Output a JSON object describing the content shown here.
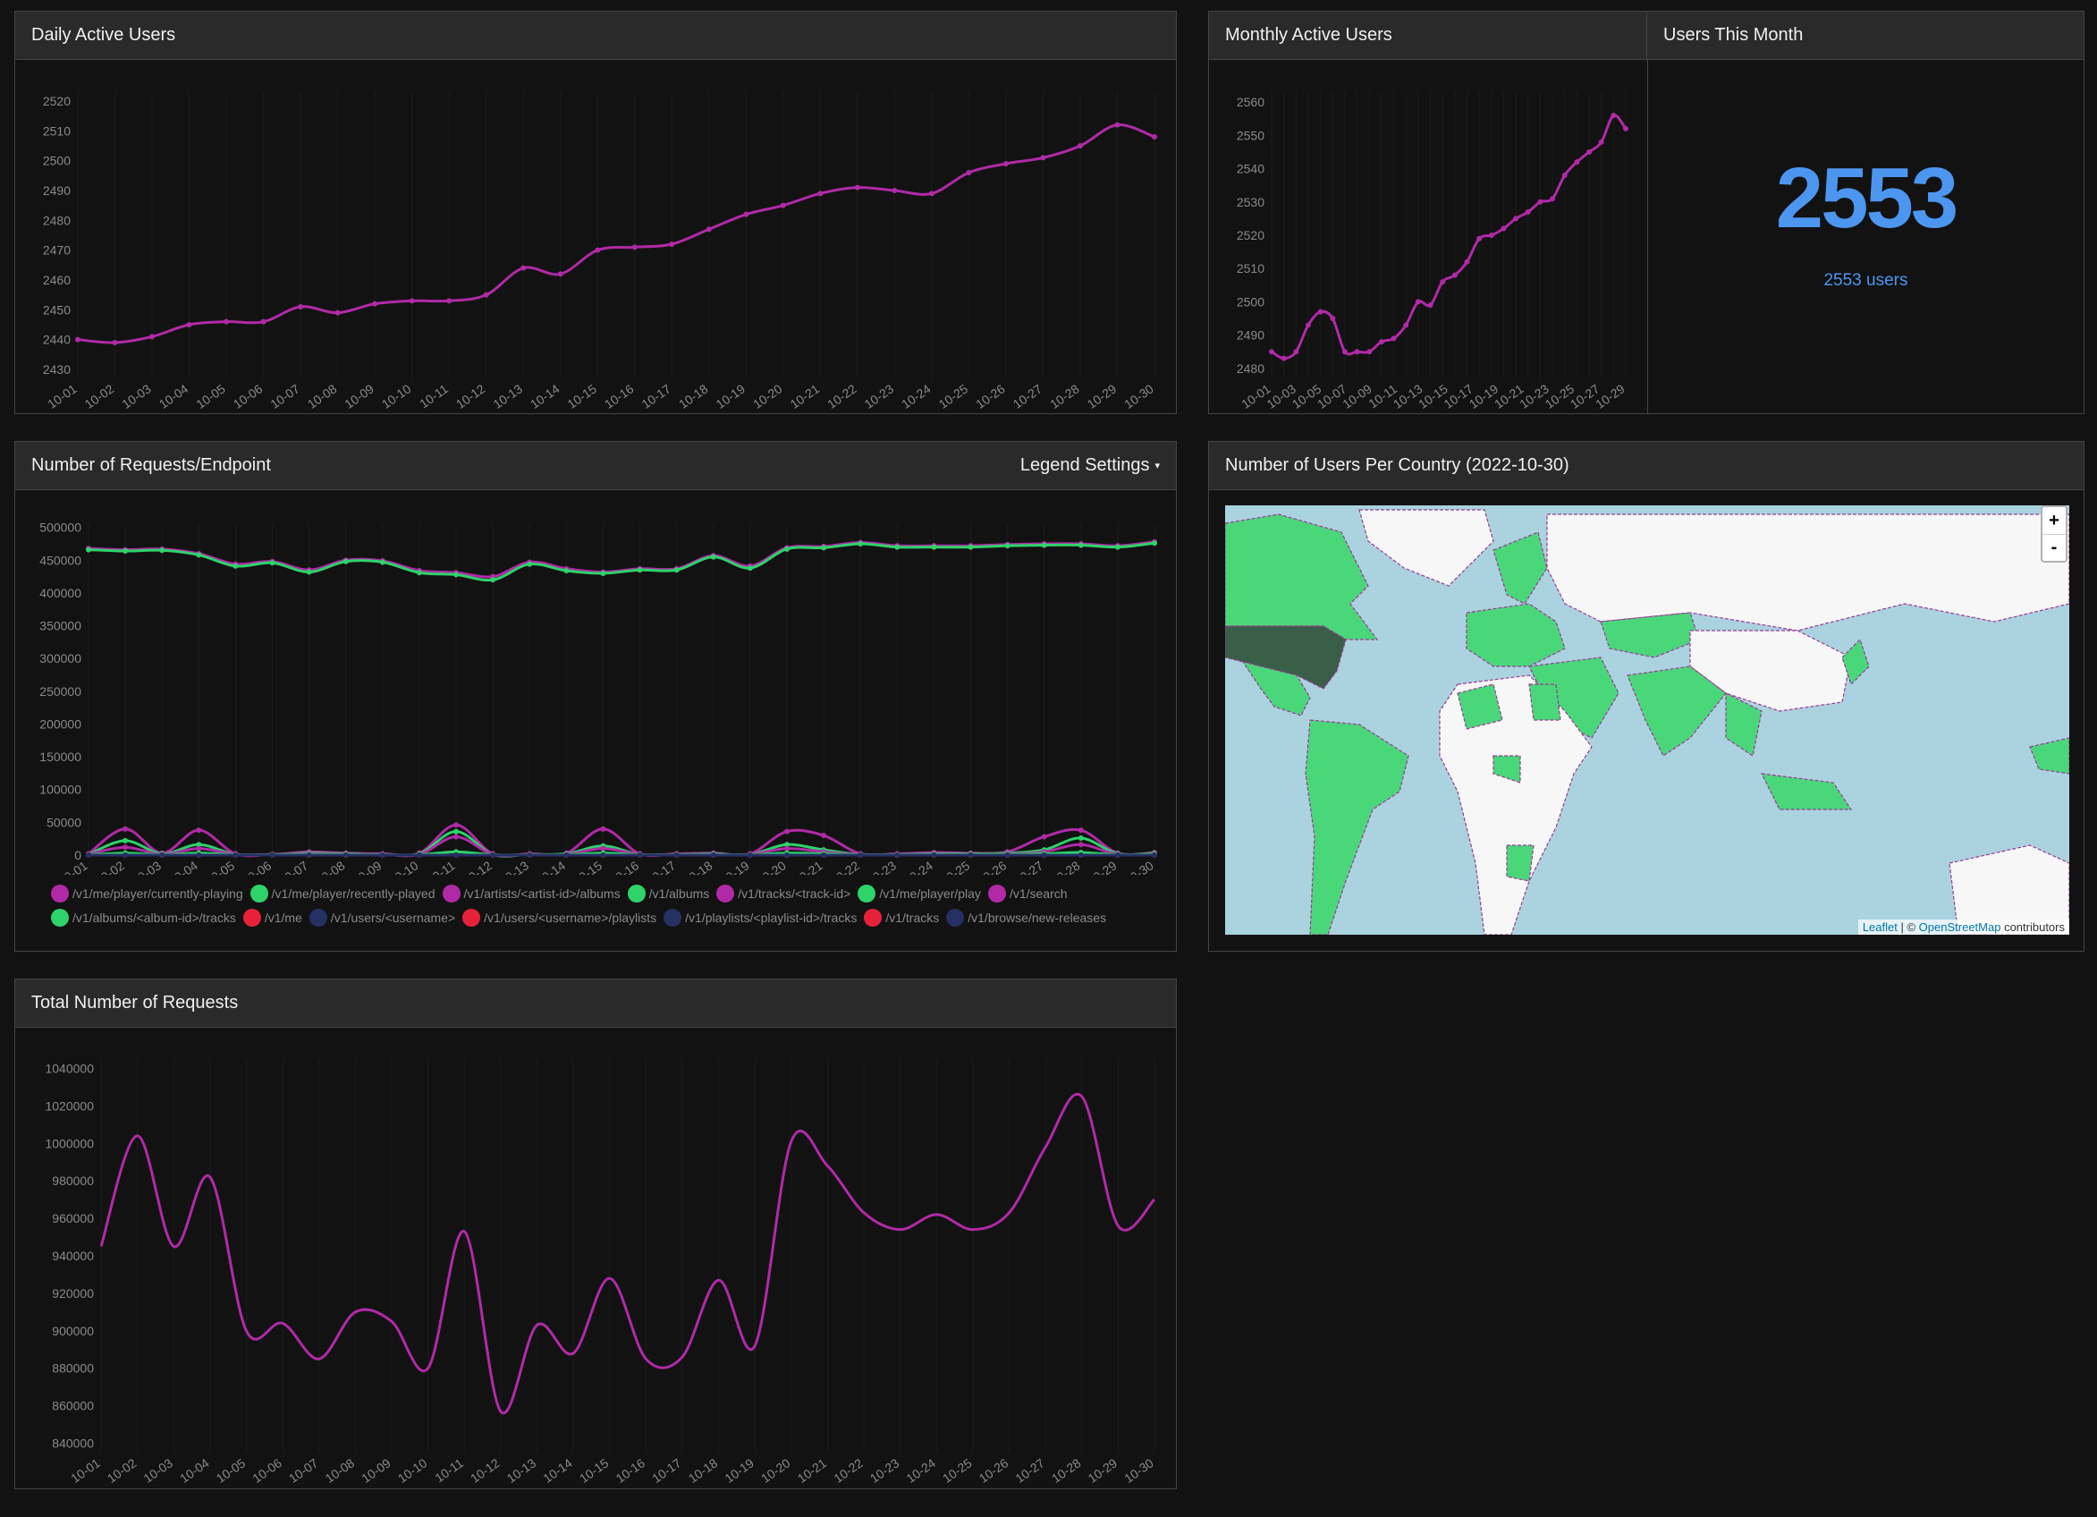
{
  "colors": {
    "accent": "#4d96f0",
    "purple": "#b02aa6",
    "green": "#2ed36a",
    "red": "#e8213a",
    "navy": "#253063"
  },
  "panels": {
    "dau": {
      "title": "Daily Active Users"
    },
    "mau": {
      "title": "Monthly Active Users"
    },
    "utm": {
      "title": "Users This Month",
      "value": "2553",
      "caption": "2553 users"
    },
    "req": {
      "title": "Number of Requests/Endpoint",
      "legend_button": "Legend Settings"
    },
    "map": {
      "title": "Number of Users Per Country (2022-10-30)",
      "zoom_in": "+",
      "zoom_out": "-",
      "attrib_leaflet": "Leaflet",
      "attrib_sep": " | © ",
      "attrib_osm": "OpenStreetMap",
      "attrib_tail": " contributors"
    },
    "total": {
      "title": "Total Number of Requests"
    }
  },
  "chart_data": [
    {
      "type": "line",
      "title": "Daily Active Users",
      "x": [
        "10-01",
        "10-02",
        "10-03",
        "10-04",
        "10-05",
        "10-06",
        "10-07",
        "10-08",
        "10-09",
        "10-10",
        "10-11",
        "10-12",
        "10-13",
        "10-14",
        "10-15",
        "10-16",
        "10-17",
        "10-18",
        "10-19",
        "10-20",
        "10-21",
        "10-22",
        "10-23",
        "10-24",
        "10-25",
        "10-26",
        "10-27",
        "10-28",
        "10-29",
        "10-30"
      ],
      "series": [
        {
          "values": [
            2440,
            2439,
            2441,
            2445,
            2446,
            2446,
            2451,
            2449,
            2452,
            2453,
            2453,
            2455,
            2464,
            2462,
            2470,
            2471,
            2472,
            2477,
            2482,
            2485,
            2489,
            2491,
            2490,
            2489,
            2496,
            2499,
            2501,
            2505,
            2512,
            2508
          ]
        }
      ],
      "yticks": [
        2430,
        2440,
        2450,
        2460,
        2470,
        2480,
        2490,
        2500,
        2510,
        2520
      ],
      "ylim": [
        2427,
        2523
      ]
    },
    {
      "type": "line",
      "title": "Monthly Active Users",
      "xticks": [
        "10-01",
        "10-03",
        "10-05",
        "10-07",
        "10-09",
        "10-11",
        "10-13",
        "10-15",
        "10-17",
        "10-19",
        "10-21",
        "10-23",
        "10-25",
        "10-27",
        "10-29"
      ],
      "series": [
        {
          "values": [
            2485,
            2483,
            2485,
            2493,
            2497,
            2495,
            2485,
            2485,
            2485,
            2488,
            2489,
            2493,
            2500,
            2499,
            2506,
            2508,
            2512,
            2519,
            2520,
            2522,
            2525,
            2527,
            2530,
            2531,
            2538,
            2542,
            2545,
            2548,
            2556,
            2552
          ]
        }
      ],
      "yticks": [
        2480,
        2490,
        2500,
        2510,
        2520,
        2530,
        2540,
        2550,
        2560
      ],
      "ylim": [
        2477,
        2563
      ]
    },
    {
      "type": "line",
      "title": "Number of Requests/Endpoint",
      "x": [
        "10-01",
        "10-02",
        "10-03",
        "10-04",
        "10-05",
        "10-06",
        "10-07",
        "10-08",
        "10-09",
        "10-10",
        "10-11",
        "10-12",
        "10-13",
        "10-14",
        "10-15",
        "10-16",
        "10-17",
        "10-18",
        "10-19",
        "10-20",
        "10-21",
        "10-22",
        "10-23",
        "10-24",
        "10-25",
        "10-26",
        "10-27",
        "10-28",
        "10-29",
        "10-30"
      ],
      "yticks": [
        0,
        50000,
        100000,
        150000,
        200000,
        250000,
        300000,
        350000,
        400000,
        450000,
        500000
      ],
      "ylim": [
        0,
        505000
      ],
      "series": [
        {
          "name": "/v1/me/player/currently-playing",
          "color": "#b02aa6",
          "values": [
            468000,
            466000,
            467000,
            460000,
            444000,
            448000,
            435000,
            450000,
            449000,
            434000,
            431000,
            425000,
            447000,
            437000,
            432000,
            437000,
            437000,
            457000,
            441000,
            469000,
            471000,
            477000,
            472000,
            472000,
            472000,
            474000,
            475000,
            475000,
            472000,
            478000
          ]
        },
        {
          "name": "/v1/me/player/recently-played",
          "color": "#2ed36a",
          "values": [
            466000,
            464000,
            465000,
            458000,
            441000,
            446000,
            432000,
            448000,
            447000,
            431000,
            428000,
            420000,
            444000,
            434000,
            430000,
            435000,
            435000,
            455000,
            438000,
            467000,
            469000,
            475000,
            470000,
            470000,
            470000,
            472000,
            473000,
            473000,
            470000,
            476000
          ]
        },
        {
          "name": "/v1/artists/<artist-id>/albums",
          "color": "#b02aa6",
          "values": [
            2000,
            40000,
            3000,
            38000,
            2000,
            1000,
            5000,
            3000,
            2000,
            3000,
            46000,
            2000,
            2000,
            3000,
            40000,
            2000,
            2000,
            3000,
            2000,
            36000,
            30000,
            2000,
            2000,
            4000,
            3000,
            5000,
            28000,
            38000,
            3000,
            4000
          ]
        },
        {
          "name": "/v1/albums",
          "color": "#2ed36a",
          "values": [
            1000,
            22000,
            2000,
            16000,
            1000,
            1000,
            3000,
            2000,
            1000,
            2000,
            36000,
            1000,
            1000,
            2000,
            14000,
            1000,
            1000,
            2000,
            1000,
            16000,
            8000,
            1000,
            1000,
            2000,
            2000,
            3000,
            8000,
            26000,
            2000,
            3000
          ]
        },
        {
          "name": "/v1/tracks/<track-id>",
          "color": "#b02aa6",
          "values": [
            1000,
            12000,
            1000,
            10000,
            1000,
            1000,
            2000,
            1000,
            1000,
            1000,
            28000,
            1000,
            1000,
            1000,
            10000,
            1000,
            1000,
            1000,
            1000,
            10000,
            5000,
            1000,
            1000,
            1000,
            1000,
            2000,
            5000,
            16000,
            1000,
            2000
          ]
        },
        {
          "name": "/v1/me/player/play",
          "color": "#2ed36a",
          "values": [
            500,
            3000,
            500,
            3000,
            500,
            500,
            1000,
            500,
            500,
            500,
            5000,
            500,
            500,
            500,
            3000,
            500,
            500,
            500,
            500,
            3000,
            2000,
            500,
            500,
            500,
            500,
            1000,
            2000,
            4000,
            500,
            1000
          ]
        },
        {
          "name": "/v1/search",
          "color": "#b02aa6",
          "values": [
            0,
            0,
            0,
            0,
            0,
            0,
            0,
            0,
            0,
            0,
            0,
            0,
            0,
            0,
            0,
            0,
            0,
            0,
            0,
            0,
            0,
            0,
            0,
            0,
            0,
            0,
            0,
            0,
            0,
            0
          ]
        },
        {
          "name": "/v1/albums/<album-id>/tracks",
          "color": "#2ed36a",
          "values": [
            0,
            0,
            0,
            0,
            0,
            0,
            0,
            0,
            0,
            0,
            0,
            0,
            0,
            0,
            0,
            0,
            0,
            0,
            0,
            0,
            0,
            0,
            0,
            0,
            0,
            0,
            0,
            0,
            0,
            0
          ]
        },
        {
          "name": "/v1/me",
          "color": "#e8213a",
          "values": [
            0,
            0,
            0,
            0,
            0,
            0,
            0,
            0,
            0,
            0,
            0,
            0,
            0,
            0,
            0,
            0,
            0,
            0,
            0,
            0,
            0,
            0,
            0,
            0,
            0,
            0,
            0,
            0,
            0,
            0
          ]
        },
        {
          "name": "/v1/users/<username>",
          "color": "#253063",
          "values": [
            0,
            0,
            0,
            0,
            0,
            0,
            0,
            0,
            0,
            0,
            0,
            0,
            0,
            0,
            0,
            0,
            0,
            0,
            0,
            0,
            0,
            0,
            0,
            0,
            0,
            0,
            0,
            0,
            0,
            0
          ]
        },
        {
          "name": "/v1/users/<username>/playlists",
          "color": "#e8213a",
          "values": [
            0,
            0,
            0,
            0,
            0,
            0,
            0,
            0,
            0,
            0,
            0,
            0,
            0,
            0,
            0,
            0,
            0,
            0,
            0,
            0,
            0,
            0,
            0,
            0,
            0,
            0,
            0,
            0,
            0,
            0
          ]
        },
        {
          "name": "/v1/playlists/<playlist-id>/tracks",
          "color": "#253063",
          "values": [
            0,
            0,
            0,
            0,
            0,
            0,
            0,
            0,
            0,
            0,
            0,
            0,
            0,
            0,
            0,
            0,
            0,
            0,
            0,
            0,
            0,
            0,
            0,
            0,
            0,
            0,
            0,
            0,
            0,
            0
          ]
        },
        {
          "name": "/v1/tracks",
          "color": "#e8213a",
          "values": [
            0,
            0,
            0,
            0,
            0,
            0,
            0,
            0,
            0,
            0,
            0,
            0,
            0,
            0,
            0,
            0,
            0,
            0,
            0,
            0,
            0,
            0,
            0,
            0,
            0,
            0,
            0,
            0,
            0,
            0
          ]
        },
        {
          "name": "/v1/browse/new-releases",
          "color": "#253063",
          "values": [
            0,
            0,
            0,
            0,
            0,
            0,
            0,
            0,
            0,
            0,
            0,
            0,
            0,
            0,
            0,
            0,
            0,
            0,
            0,
            0,
            0,
            0,
            0,
            0,
            0,
            0,
            0,
            0,
            0,
            0
          ]
        }
      ]
    },
    {
      "type": "line",
      "title": "Total Number of Requests",
      "x": [
        "10-01",
        "10-02",
        "10-03",
        "10-04",
        "10-05",
        "10-06",
        "10-07",
        "10-08",
        "10-09",
        "10-10",
        "10-11",
        "10-12",
        "10-13",
        "10-14",
        "10-15",
        "10-16",
        "10-17",
        "10-18",
        "10-19",
        "10-20",
        "10-21",
        "10-22",
        "10-23",
        "10-24",
        "10-25",
        "10-26",
        "10-27",
        "10-28",
        "10-29",
        "10-30"
      ],
      "series": [
        {
          "values": [
            945000,
            1004000,
            945000,
            982000,
            900000,
            904000,
            885000,
            910000,
            905000,
            880000,
            953000,
            857000,
            903000,
            888000,
            928000,
            885000,
            886000,
            927000,
            892000,
            1001000,
            988000,
            963000,
            954000,
            962000,
            954000,
            963000,
            998000,
            1025000,
            956000,
            970000
          ]
        }
      ],
      "yticks": [
        840000,
        860000,
        880000,
        900000,
        920000,
        940000,
        960000,
        980000,
        1000000,
        1020000,
        1040000
      ],
      "ylim": [
        835000,
        1045000
      ]
    }
  ]
}
